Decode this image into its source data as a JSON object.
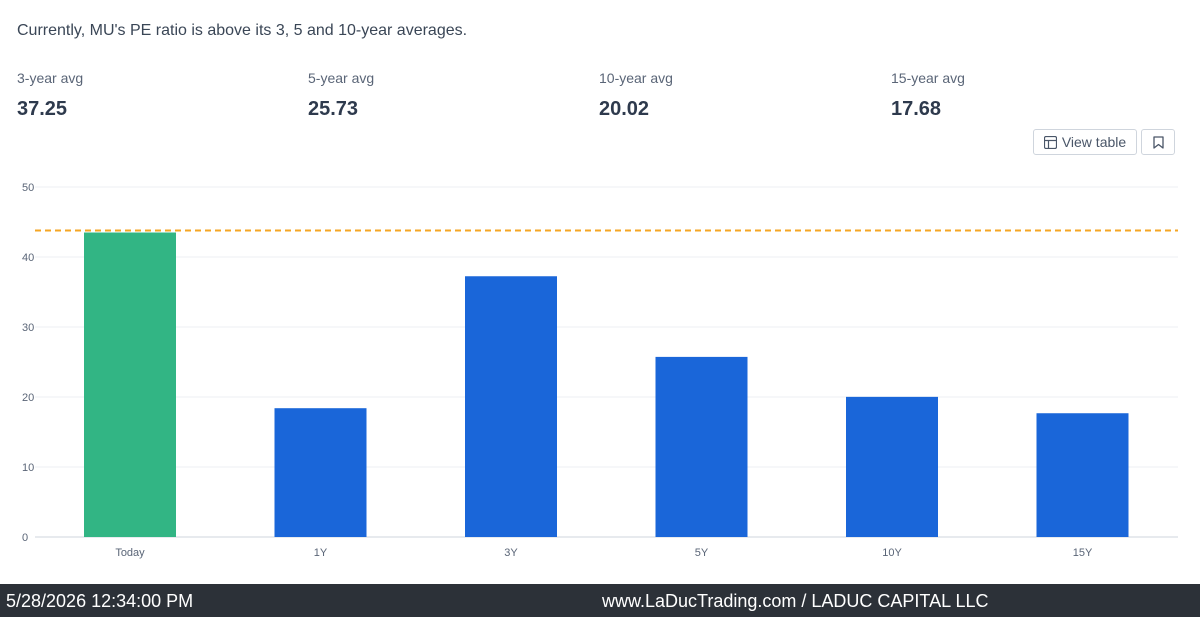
{
  "headline": "Currently, MU's PE ratio is above its 3, 5 and 10-year averages.",
  "stats": [
    {
      "label": "3-year avg",
      "value": "37.25"
    },
    {
      "label": "5-year avg",
      "value": "25.73"
    },
    {
      "label": "10-year avg",
      "value": "20.02"
    },
    {
      "label": "15-year avg",
      "value": "17.68"
    }
  ],
  "toolbar": {
    "view_table_label": "View table",
    "view_table_icon": "table-icon",
    "bookmark_icon": "bookmark-icon"
  },
  "chart_data": {
    "type": "bar",
    "categories": [
      "Today",
      "1Y",
      "3Y",
      "5Y",
      "10Y",
      "15Y"
    ],
    "values": [
      43.5,
      18.4,
      37.25,
      25.73,
      20.02,
      17.68
    ],
    "colors": [
      "#32b584",
      "#1a66d9",
      "#1a66d9",
      "#1a66d9",
      "#1a66d9",
      "#1a66d9"
    ],
    "reference_line": {
      "value": 43.5,
      "color": "#f5a623",
      "style": "dashed"
    },
    "ylim": [
      0,
      50
    ],
    "yticks": [
      0,
      10,
      20,
      30,
      40,
      50
    ],
    "grid": true,
    "title": "",
    "xlabel": "",
    "ylabel": ""
  },
  "footer": {
    "timestamp": "5/28/2026 12:34:00 PM",
    "watermark": "www.LaDucTrading.com / LADUC CAPITAL LLC"
  }
}
